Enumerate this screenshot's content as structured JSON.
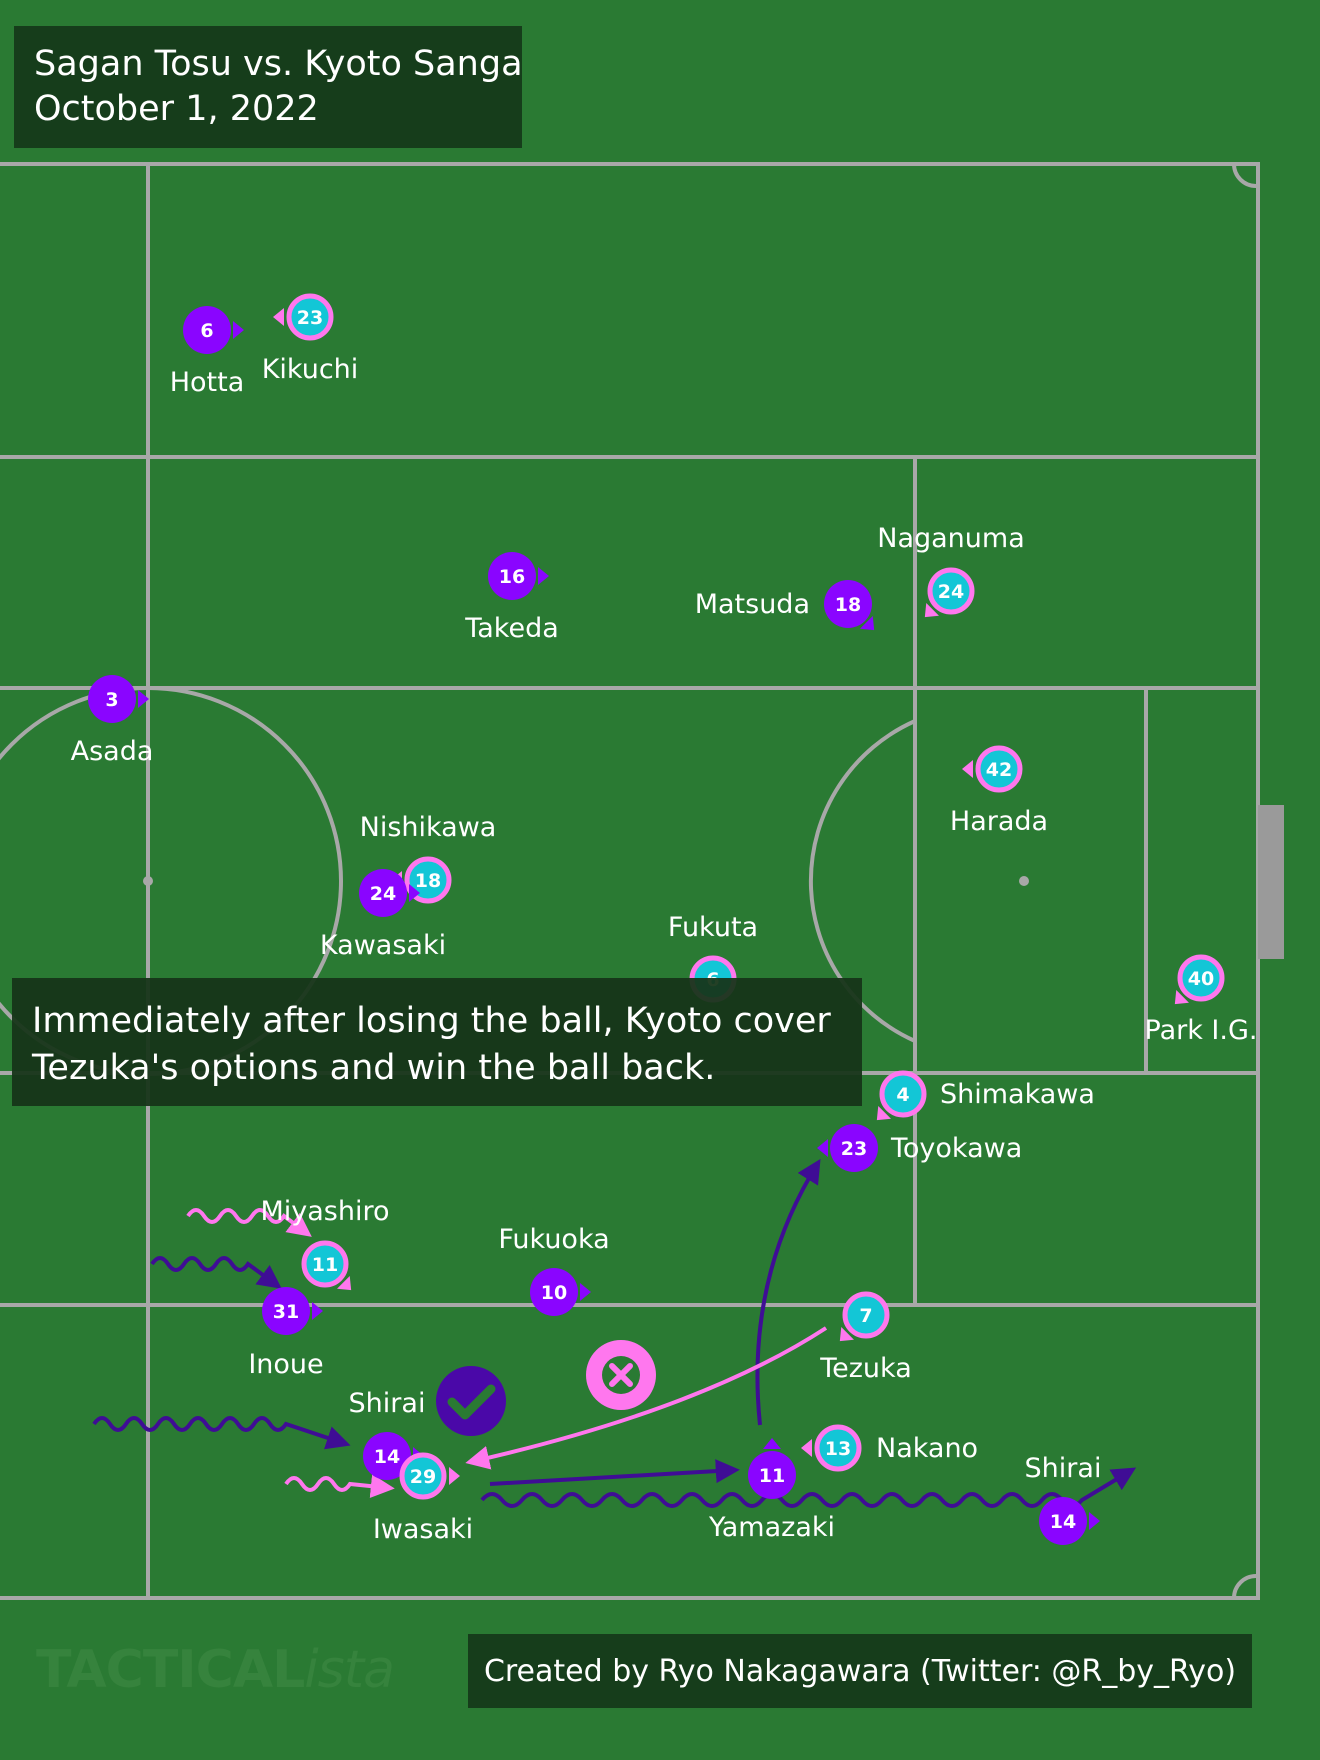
{
  "header": {
    "title_line1": "Sagan Tosu vs. Kyoto Sanga",
    "title_line2": "October 1, 2022"
  },
  "caption": {
    "line1": "Immediately after losing the ball, Kyoto cover",
    "line2": "Tezuka's options and win the ball back."
  },
  "footer": {
    "credit": "Created by Ryo Nakagawara (Twitter: @R_by_Ryo)",
    "watermark_bold": "TACTICAL",
    "watermark_italic": "ista"
  },
  "teams": {
    "purple": {
      "color": "#8a05ff",
      "label_color": "#ffffff"
    },
    "cyan": {
      "color": "#13c6d6",
      "ring_color": "#ff77ee"
    }
  },
  "players": [
    {
      "team": "purple",
      "number": "6",
      "name": "Hotta",
      "dir": "right"
    },
    {
      "team": "cyan",
      "number": "23",
      "name": "Kikuchi",
      "dir": "left"
    },
    {
      "team": "purple",
      "number": "16",
      "name": "Takeda",
      "dir": "right"
    },
    {
      "team": "purple",
      "number": "18",
      "name": "Matsuda",
      "dir": "down-right"
    },
    {
      "team": "cyan",
      "number": "24",
      "name": "Naganuma",
      "dir": "down-left"
    },
    {
      "team": "purple",
      "number": "3",
      "name": "Asada",
      "dir": "right"
    },
    {
      "team": "cyan",
      "number": "42",
      "name": "Harada",
      "dir": "left"
    },
    {
      "team": "cyan",
      "number": "18",
      "name": "Nishikawa",
      "dir": "left"
    },
    {
      "team": "purple",
      "number": "24",
      "name": "Kawasaki",
      "dir": "right"
    },
    {
      "team": "cyan",
      "number": "6",
      "name": "Fukuta",
      "dir": "none"
    },
    {
      "team": "cyan",
      "number": "40",
      "name": "Park I.G.",
      "dir": "down-left"
    },
    {
      "team": "cyan",
      "number": "4",
      "name": "Shimakawa",
      "dir": "down-left"
    },
    {
      "team": "purple",
      "number": "23",
      "name": "Toyokawa",
      "dir": "left"
    },
    {
      "team": "cyan",
      "number": "11",
      "name": "Miyashiro",
      "dir": "down-right"
    },
    {
      "team": "purple",
      "number": "31",
      "name": "Inoue",
      "dir": "right"
    },
    {
      "team": "purple",
      "number": "10",
      "name": "Fukuoka",
      "dir": "right"
    },
    {
      "team": "cyan",
      "number": "7",
      "name": "Tezuka",
      "dir": "down-left"
    },
    {
      "team": "purple",
      "number": "14",
      "name": "Shirai",
      "dir": "right"
    },
    {
      "team": "cyan",
      "number": "29",
      "name": "Iwasaki",
      "dir": "right"
    },
    {
      "team": "cyan",
      "number": "13",
      "name": "Nakano",
      "dir": "left"
    },
    {
      "team": "purple",
      "number": "11",
      "name": "Yamazaki",
      "dir": "up"
    },
    {
      "team": "purple",
      "number": "14",
      "name": "Shirai",
      "dir": "right"
    }
  ],
  "markers": {
    "success": {
      "icon": "check-icon",
      "color": "#4a08a8"
    },
    "failure": {
      "icon": "cross-icon",
      "color": "#ff77ee"
    }
  },
  "colors": {
    "pitch": "#2a7a33",
    "lines": "#a8a8a8",
    "purple_arrow": "#3f0d95",
    "pink_arrow": "#ff77ee"
  }
}
